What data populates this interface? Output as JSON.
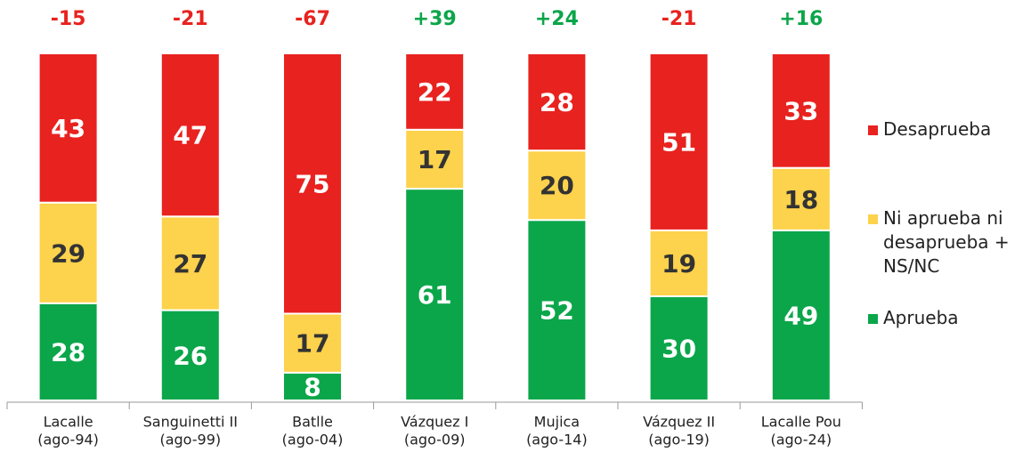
{
  "chart_data": {
    "type": "stacked_bar",
    "categories": [
      [
        "Lacalle",
        "(ago-94)"
      ],
      [
        "Sanguinetti II",
        "(ago-99)"
      ],
      [
        "Batlle",
        "(ago-04)"
      ],
      [
        "Vázquez I",
        "(ago-09)"
      ],
      [
        "Mujica",
        "(ago-14)"
      ],
      [
        "Vázquez II",
        "(ago-19)"
      ],
      [
        "Lacalle Pou",
        "(ago-24)"
      ]
    ],
    "series": [
      {
        "name": "Aprueba",
        "color": "#0ba64a",
        "label_color": "#ffffff",
        "values": [
          28,
          26,
          8,
          61,
          52,
          30,
          49
        ]
      },
      {
        "name": "Ni aprueba ni desaprueba + NS/NC",
        "color": "#fdd24c",
        "label_color": "#333333",
        "values": [
          29,
          27,
          17,
          17,
          20,
          19,
          18
        ]
      },
      {
        "name": "Desaprueba",
        "color": "#e8221f",
        "label_color": "#ffffff",
        "values": [
          43,
          47,
          75,
          22,
          28,
          51,
          33
        ]
      }
    ],
    "net": {
      "values": [
        -15,
        -21,
        -67,
        39,
        24,
        -21,
        16
      ],
      "value_labels": [
        "-15",
        "-21",
        "-67",
        "+39",
        "+24",
        "-21",
        "+16"
      ]
    },
    "ylim": [
      0,
      100
    ]
  }
}
